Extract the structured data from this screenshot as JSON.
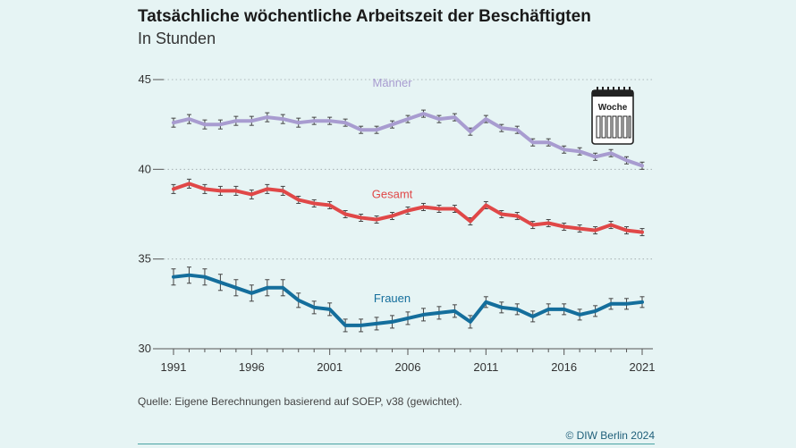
{
  "header": {
    "title": "Tatsächliche wöchentliche Arbeitszeit der Beschäftigten",
    "subtitle": "In Stunden"
  },
  "footer": {
    "source": "Quelle: Eigene Berechnungen basierend auf SOEP, v38 (gewichtet).",
    "copyright": "© DIW Berlin 2024"
  },
  "icon": {
    "name": "calendar-icon",
    "label": "Woche"
  },
  "chart_data": {
    "type": "line",
    "title": "Tatsächliche wöchentliche Arbeitszeit der Beschäftigten",
    "subtitle": "In Stunden",
    "xlabel": "",
    "ylabel": "",
    "xlim": [
      1991,
      2021
    ],
    "ylim": [
      30,
      45
    ],
    "x_ticks": [
      1991,
      1996,
      2001,
      2006,
      2011,
      2016,
      2021
    ],
    "y_ticks": [
      30,
      35,
      40,
      45
    ],
    "grid": "horizontal dotted",
    "error_bars": true,
    "x": [
      1991,
      1992,
      1993,
      1994,
      1995,
      1996,
      1997,
      1998,
      1999,
      2000,
      2001,
      2002,
      2003,
      2004,
      2005,
      2006,
      2007,
      2008,
      2009,
      2010,
      2011,
      2012,
      2013,
      2014,
      2015,
      2016,
      2017,
      2018,
      2019,
      2020,
      2021
    ],
    "series": [
      {
        "name": "Männer",
        "color": "#a89cd0",
        "values": [
          42.6,
          42.8,
          42.5,
          42.5,
          42.7,
          42.7,
          42.9,
          42.8,
          42.6,
          42.7,
          42.7,
          42.6,
          42.2,
          42.2,
          42.5,
          42.8,
          43.1,
          42.8,
          42.9,
          42.1,
          42.8,
          42.3,
          42.2,
          41.5,
          41.5,
          41.1,
          41.0,
          40.7,
          40.9,
          40.5,
          40.2
        ],
        "errors": [
          0.25,
          0.25,
          0.25,
          0.25,
          0.25,
          0.25,
          0.25,
          0.25,
          0.25,
          0.2,
          0.2,
          0.2,
          0.2,
          0.2,
          0.2,
          0.2,
          0.2,
          0.2,
          0.2,
          0.2,
          0.2,
          0.2,
          0.2,
          0.2,
          0.2,
          0.2,
          0.2,
          0.2,
          0.2,
          0.2,
          0.2
        ]
      },
      {
        "name": "Gesamt",
        "color": "#e04848",
        "values": [
          38.9,
          39.2,
          38.9,
          38.8,
          38.8,
          38.6,
          38.9,
          38.8,
          38.3,
          38.1,
          38.0,
          37.5,
          37.3,
          37.2,
          37.4,
          37.7,
          37.9,
          37.8,
          37.8,
          37.1,
          38.0,
          37.5,
          37.4,
          36.9,
          37.0,
          36.8,
          36.7,
          36.6,
          36.9,
          36.6,
          36.5
        ],
        "errors": [
          0.25,
          0.25,
          0.25,
          0.25,
          0.25,
          0.25,
          0.25,
          0.25,
          0.2,
          0.2,
          0.2,
          0.2,
          0.2,
          0.2,
          0.2,
          0.2,
          0.2,
          0.2,
          0.2,
          0.2,
          0.2,
          0.2,
          0.2,
          0.2,
          0.2,
          0.2,
          0.2,
          0.2,
          0.2,
          0.2,
          0.2
        ]
      },
      {
        "name": "Frauen",
        "color": "#146e9c",
        "values": [
          34.0,
          34.1,
          34.0,
          33.7,
          33.4,
          33.1,
          33.4,
          33.4,
          32.7,
          32.3,
          32.2,
          31.3,
          31.3,
          31.4,
          31.5,
          31.7,
          31.9,
          32.0,
          32.1,
          31.5,
          32.6,
          32.3,
          32.2,
          31.8,
          32.2,
          32.2,
          31.9,
          32.1,
          32.5,
          32.5,
          32.6
        ],
        "errors": [
          0.45,
          0.45,
          0.45,
          0.45,
          0.45,
          0.45,
          0.45,
          0.45,
          0.4,
          0.35,
          0.35,
          0.35,
          0.35,
          0.35,
          0.35,
          0.35,
          0.35,
          0.35,
          0.35,
          0.35,
          0.3,
          0.3,
          0.3,
          0.3,
          0.3,
          0.3,
          0.3,
          0.3,
          0.3,
          0.3,
          0.3
        ]
      }
    ]
  }
}
